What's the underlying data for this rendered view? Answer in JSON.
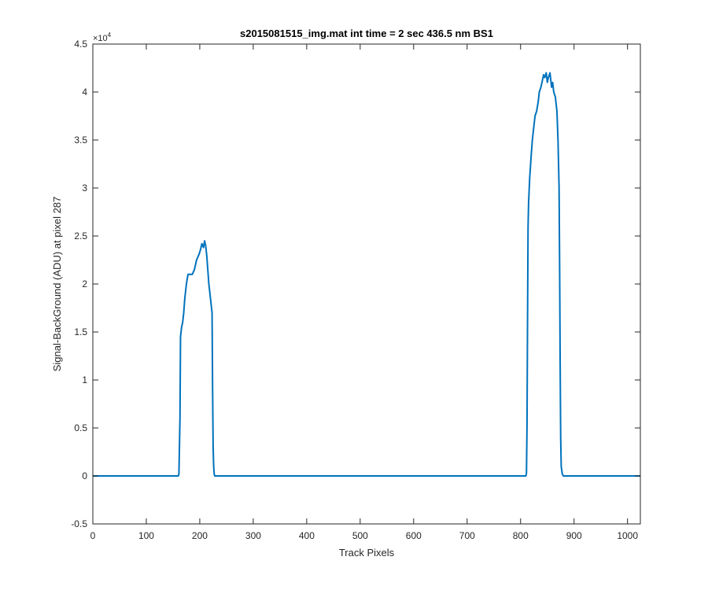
{
  "chart_data": {
    "type": "line",
    "title": "s2015081515_img.mat int time = 2 sec  436.5 nm BS1",
    "xlabel": "Track Pixels",
    "ylabel": "Signal-BackGround (ADU) at pixel 287",
    "xlim": [
      0,
      1024
    ],
    "ylim": [
      -0.5,
      4.5
    ],
    "y_multiplier": "×10",
    "y_multiplier_exponent": "4",
    "x_ticks": [
      0,
      100,
      200,
      300,
      400,
      500,
      600,
      700,
      800,
      900,
      1000
    ],
    "x_tick_labels": [
      "0",
      "100",
      "200",
      "300",
      "400",
      "500",
      "600",
      "700",
      "800",
      "900",
      "1000"
    ],
    "y_ticks": [
      -0.5,
      0,
      0.5,
      1,
      1.5,
      2,
      2.5,
      3,
      3.5,
      4,
      4.5
    ],
    "y_tick_labels": [
      "-0.5",
      "0",
      "0.5",
      "1",
      "1.5",
      "2",
      "2.5",
      "3",
      "3.5",
      "4",
      "4.5"
    ],
    "grid": false,
    "series": [
      {
        "color": "#0072BD",
        "x": [
          0,
          100,
          160,
          161,
          163,
          164,
          166,
          168,
          170,
          172,
          175,
          178,
          182,
          186,
          190,
          194,
          198,
          201,
          204,
          207,
          209,
          211,
          213,
          215,
          217,
          219,
          221,
          223,
          224,
          225,
          226,
          227,
          228,
          230,
          300,
          500,
          700,
          810,
          811,
          812,
          813,
          814,
          815,
          817,
          820,
          822,
          825,
          827,
          830,
          833,
          835,
          838,
          840,
          843,
          845,
          848,
          850,
          852,
          855,
          858,
          860,
          862,
          865,
          868,
          870,
          872,
          873,
          874,
          875,
          876,
          878,
          880,
          900,
          1024
        ],
        "y": [
          0.0,
          0.0,
          0.0,
          0.02,
          0.6,
          1.45,
          1.55,
          1.6,
          1.7,
          1.85,
          2.0,
          2.1,
          2.1,
          2.1,
          2.15,
          2.25,
          2.3,
          2.35,
          2.42,
          2.38,
          2.45,
          2.4,
          2.3,
          2.15,
          2.0,
          1.9,
          1.8,
          1.7,
          0.9,
          0.3,
          0.1,
          0.02,
          0.0,
          0.0,
          0.0,
          0.0,
          0.0,
          0.0,
          0.03,
          0.5,
          1.6,
          2.6,
          2.85,
          3.1,
          3.35,
          3.5,
          3.65,
          3.75,
          3.8,
          3.9,
          4.0,
          4.05,
          4.1,
          4.18,
          4.15,
          4.2,
          4.1,
          4.15,
          4.2,
          4.05,
          4.1,
          4.0,
          3.95,
          3.8,
          3.5,
          3.0,
          2.2,
          1.2,
          0.4,
          0.1,
          0.02,
          0.0,
          0.0,
          0.0
        ]
      }
    ]
  }
}
